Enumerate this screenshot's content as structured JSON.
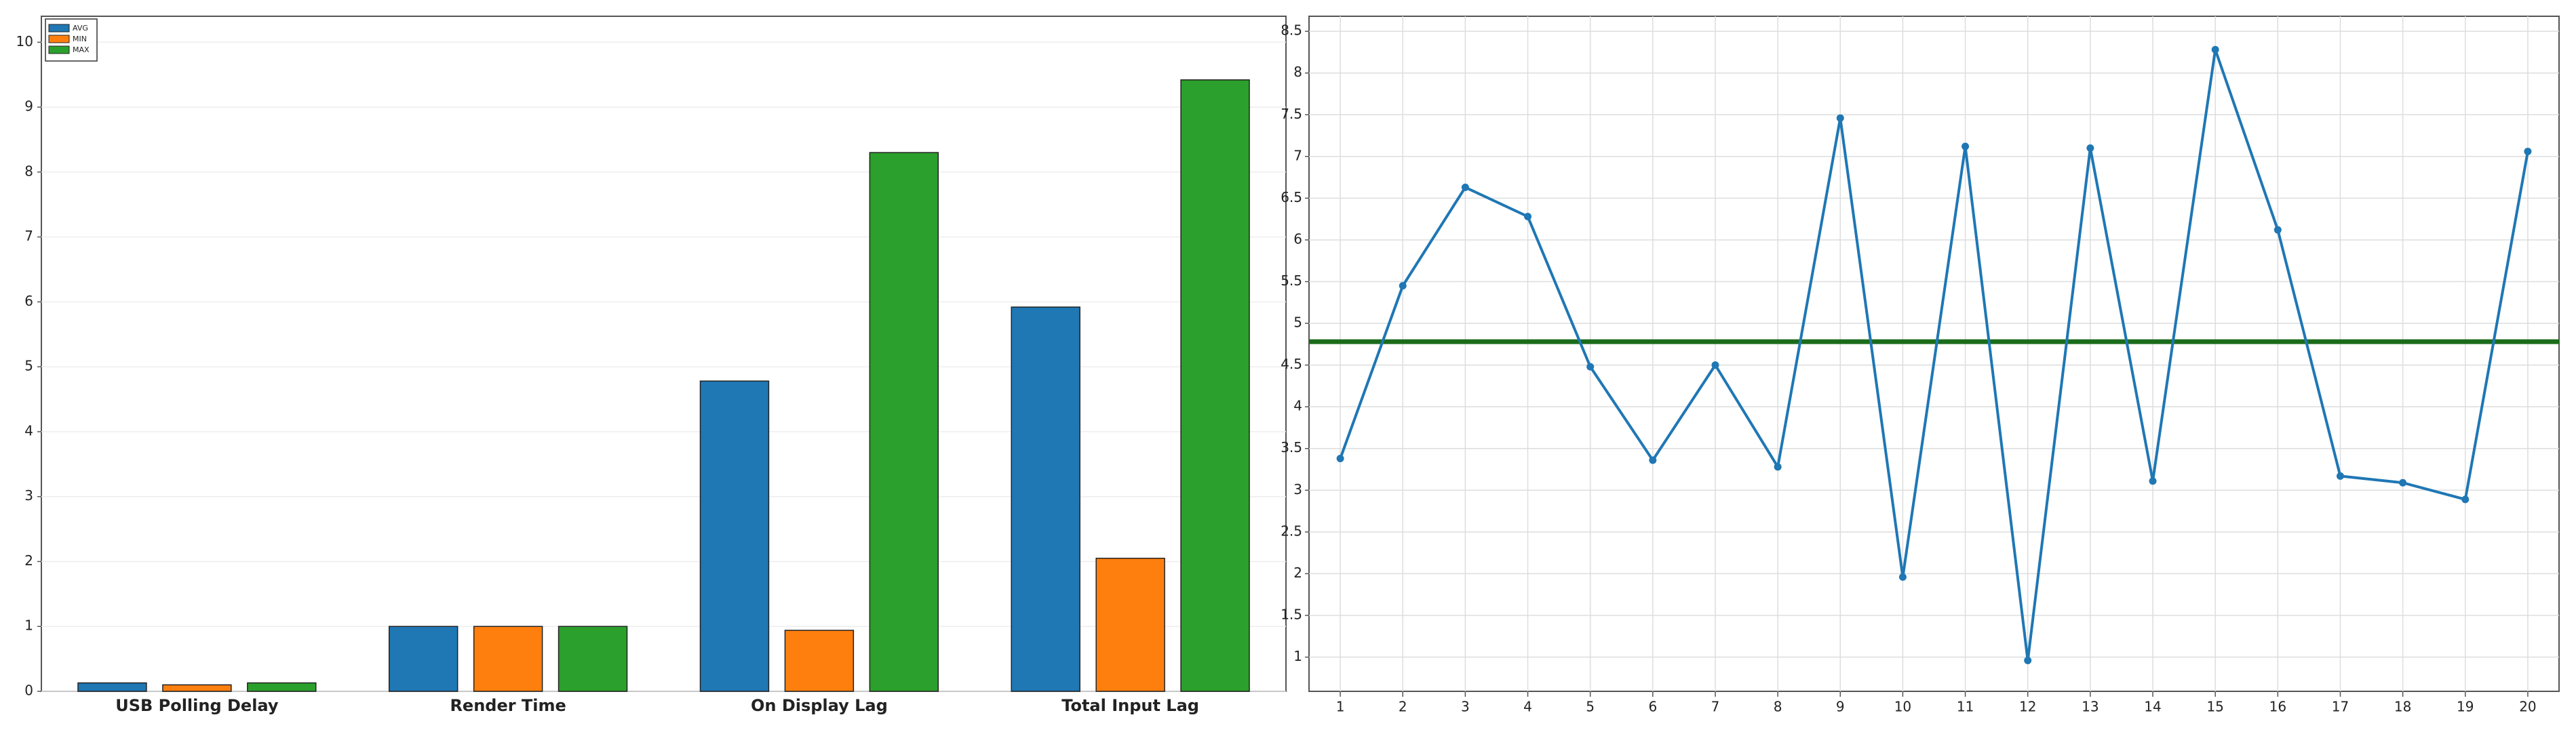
{
  "chart_data": [
    {
      "type": "bar",
      "categories": [
        "USB Polling Delay",
        "Render Time",
        "On Display Lag",
        "Total Input Lag"
      ],
      "series": [
        {
          "name": "AVG",
          "color": "#1f77b4",
          "values": [
            0.13,
            1.0,
            4.78,
            5.92
          ]
        },
        {
          "name": "MIN",
          "color": "#ff7f0e",
          "values": [
            0.1,
            1.0,
            0.94,
            2.05
          ]
        },
        {
          "name": "MAX",
          "color": "#2ca02c",
          "values": [
            0.13,
            1.0,
            8.3,
            9.42
          ]
        }
      ],
      "ylim": [
        0,
        10.4
      ],
      "yticks": [
        0,
        1,
        2,
        3,
        4,
        5,
        6,
        7,
        8,
        9,
        10
      ],
      "grid": true,
      "legend": "upper-left"
    },
    {
      "type": "line",
      "x": [
        1,
        2,
        3,
        4,
        5,
        6,
        7,
        8,
        9,
        10,
        11,
        12,
        13,
        14,
        15,
        16,
        17,
        18,
        19,
        20
      ],
      "series": [
        {
          "color": "#1f77b4",
          "values": [
            3.38,
            5.45,
            6.63,
            6.28,
            4.48,
            3.36,
            4.5,
            3.28,
            7.46,
            1.96,
            7.12,
            0.96,
            7.1,
            3.11,
            8.28,
            6.12,
            3.17,
            3.09,
            2.89,
            7.06
          ]
        }
      ],
      "hline": {
        "value": 4.78,
        "color": "#1a6b1a"
      },
      "xlim": [
        0.5,
        20.5
      ],
      "xticks": [
        1,
        2,
        3,
        4,
        5,
        6,
        7,
        8,
        9,
        10,
        11,
        12,
        13,
        14,
        15,
        16,
        17,
        18,
        19,
        20
      ],
      "ylim": [
        0.59,
        8.68
      ],
      "yticks": [
        1,
        1.5,
        2,
        2.5,
        3,
        3.5,
        4,
        4.5,
        5,
        5.5,
        6,
        6.5,
        7,
        7.5,
        8,
        8.5
      ],
      "grid": true
    }
  ]
}
